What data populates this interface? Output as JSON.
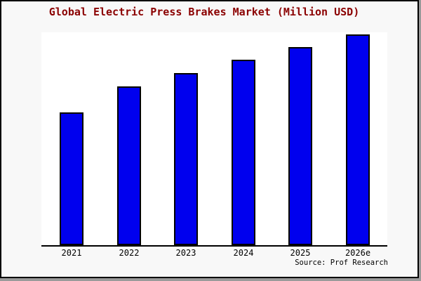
{
  "window": {
    "title_text": "Global Electric Press Brakes Market (Million USD)",
    "title_color": "#8b0000",
    "background": "#f8f8f8",
    "border_color": "#000000",
    "source_label": "Source: Prof Research"
  },
  "chart_data": {
    "type": "bar",
    "title": "Global Electric Press Brakes Market (Million USD)",
    "categories": [
      "2021",
      "2022",
      "2023",
      "2024",
      "2025",
      "2026e"
    ],
    "values": [
      63.0,
      75.3,
      81.7,
      88.0,
      94.0,
      100.0
    ],
    "values_note": "No y-axis or data labels are shown in the image; values are bar heights relative to the tallest (2026e) bar = 100.",
    "xlabel": "",
    "ylabel": "Million USD",
    "ylim": [
      0,
      101
    ],
    "bar_color": "#0000ee",
    "bar_border_color": "#000000",
    "axis_color": "#000000",
    "plot_background": "#ffffff",
    "grid": false,
    "legend": false,
    "y_axis_labels_visible": false,
    "source": "Source: Prof Research"
  }
}
